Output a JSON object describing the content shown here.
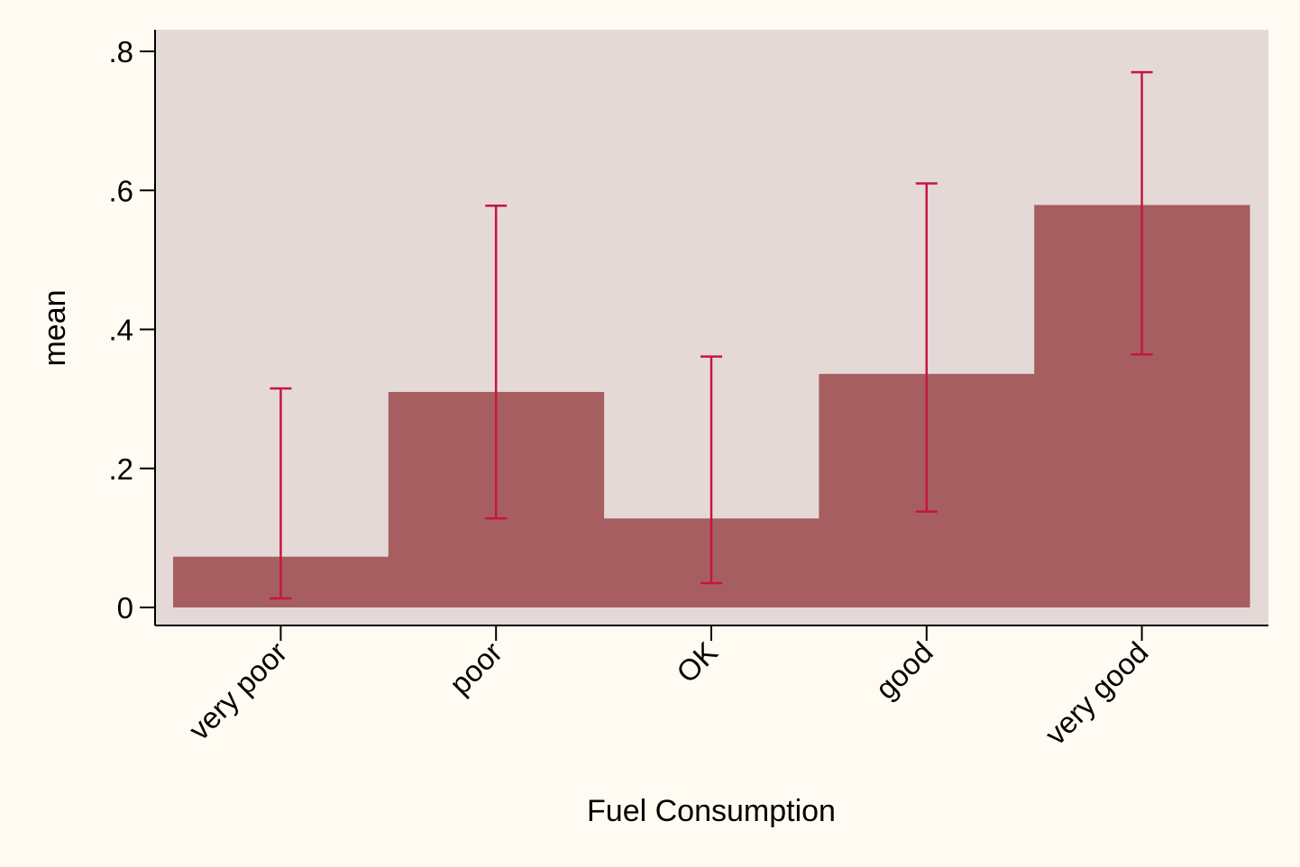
{
  "chart_data": {
    "type": "bar",
    "title": "",
    "xlabel": "Fuel Consumption",
    "ylabel": "mean",
    "categories": [
      "very poor",
      "poor",
      "OK",
      "good",
      "very good"
    ],
    "values": [
      0.073,
      0.31,
      0.128,
      0.336,
      0.579
    ],
    "ci_low": [
      0.013,
      0.128,
      0.035,
      0.138,
      0.364
    ],
    "ci_high": [
      0.315,
      0.578,
      0.361,
      0.61,
      0.77
    ],
    "ylim": [
      0,
      0.8
    ],
    "yticks": [
      0,
      0.2,
      0.4,
      0.6,
      0.8
    ],
    "ytick_labels": [
      "0",
      ".2",
      ".4",
      ".6",
      ".8"
    ],
    "grid": false,
    "legend": "none",
    "colors": {
      "page_bg": "#fffbf2",
      "plot_bg": "#e5d9d8",
      "bar": "#a65e60",
      "error_bar": "#c5163f",
      "axis": "#000000"
    }
  }
}
